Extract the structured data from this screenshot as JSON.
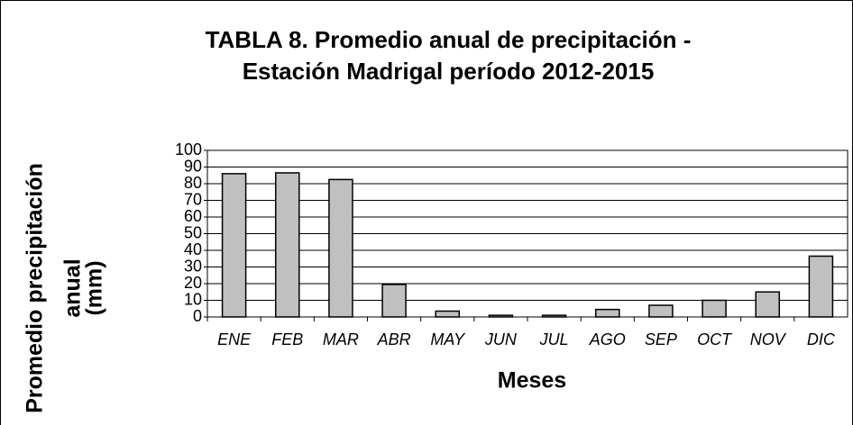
{
  "chart_data": {
    "type": "bar",
    "title": [
      "TABLA 8. Promedio anual de precipitación -",
      "Estación Madrigal período 2012-2015"
    ],
    "x_label": "Meses",
    "y_label": [
      "Promedio precipitación",
      "anual",
      "(mm)"
    ],
    "categories": [
      "ENE",
      "FEB",
      "MAR",
      "ABR",
      "MAY",
      "JUN",
      "JUL",
      "AGO",
      "SEP",
      "OCT",
      "NOV",
      "DIC"
    ],
    "values": [
      86,
      86.5,
      82.5,
      19.5,
      3.5,
      1,
      1,
      4.5,
      7,
      10,
      15,
      36.5
    ],
    "color": "#c0c0c0",
    "ylim": [
      0,
      100
    ],
    "yticks": [
      0,
      10,
      20,
      30,
      40,
      50,
      60,
      70,
      80,
      90,
      100
    ],
    "grid": true
  }
}
